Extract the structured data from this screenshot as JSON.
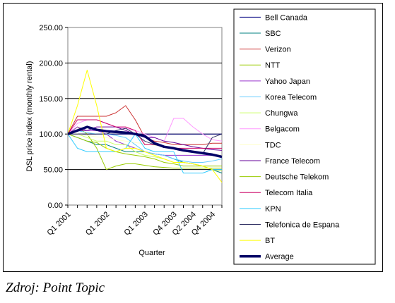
{
  "chart_data": {
    "type": "line",
    "xlabel": "Quarter",
    "ylabel": "DSL price index (monthly rental)",
    "ylim": [
      0,
      250
    ],
    "yticks": [
      "0.00",
      "50.00",
      "100.00",
      "150.00",
      "200.00",
      "250.00"
    ],
    "x": [
      "Q1 2001",
      "Q2 2001",
      "Q3 2001",
      "Q4 2001",
      "Q1 2002",
      "Q2 2002",
      "Q3 2002",
      "Q4 2002",
      "Q1 2003",
      "Q2 2003",
      "Q3 2003",
      "Q4 2003",
      "Q1 2004",
      "Q2 2004",
      "Q3 2004",
      "Q4 2004",
      "Q1 2005"
    ],
    "x_tick_labels": [
      "Q1 2001",
      "Q1 2002",
      "Q1 2003",
      "Q4 2003",
      "Q2 2004",
      "Q4 2004"
    ],
    "x_tick_index": [
      0,
      4,
      8,
      11,
      13,
      15
    ],
    "grid": "horizontal",
    "legend_position": "right",
    "series": [
      {
        "name": "Bell Canada",
        "color": "#000080",
        "width": 1,
        "values": [
          100,
          100,
          100,
          100,
          100,
          100,
          100,
          100,
          100,
          100,
          100,
          100,
          100,
          100,
          100,
          100,
          100
        ]
      },
      {
        "name": "SBC",
        "color": "#008080",
        "width": 1,
        "values": [
          100,
          95,
          90,
          85,
          85,
          80,
          75,
          75,
          75,
          72,
          70,
          65,
          60,
          58,
          55,
          50,
          45
        ]
      },
      {
        "name": "Verizon",
        "color": "#cc3333",
        "width": 1,
        "values": [
          100,
          125,
          125,
          125,
          125,
          130,
          140,
          120,
          95,
          90,
          88,
          85,
          85,
          85,
          85,
          87,
          87
        ]
      },
      {
        "name": "NTT",
        "color": "#99cc00",
        "width": 1,
        "values": [
          100,
          110,
          100,
          80,
          50,
          55,
          58,
          58,
          56,
          54,
          53,
          52,
          52,
          52,
          52,
          52,
          52
        ]
      },
      {
        "name": "Yahoo Japan",
        "color": "#9933cc",
        "width": 1,
        "values": [
          100,
          110,
          105,
          105,
          100,
          90,
          85,
          80,
          75,
          72,
          70,
          70,
          70,
          70,
          70,
          70,
          70
        ]
      },
      {
        "name": "Korea Telecom",
        "color": "#66ccff",
        "width": 1,
        "values": [
          100,
          105,
          102,
          100,
          100,
          98,
          95,
          85,
          75,
          72,
          70,
          65,
          62,
          60,
          60,
          62,
          65
        ]
      },
      {
        "name": "Chungwa",
        "color": "#ccff66",
        "width": 1,
        "values": [
          100,
          100,
          95,
          90,
          90,
          85,
          85,
          75,
          70,
          68,
          65,
          60,
          60,
          58,
          55,
          50,
          48
        ]
      },
      {
        "name": "Belgacom",
        "color": "#ff99ff",
        "width": 1,
        "values": [
          100,
          115,
          120,
          120,
          115,
          110,
          108,
          105,
          100,
          95,
          90,
          122,
          122,
          110,
          100,
          92,
          90
        ]
      },
      {
        "name": "TDC",
        "color": "#ffffcc",
        "width": 1,
        "values": [
          100,
          100,
          98,
          96,
          95,
          92,
          90,
          88,
          86,
          84,
          82,
          80,
          78,
          76,
          74,
          72,
          70
        ]
      },
      {
        "name": "France Telecom",
        "color": "#660099",
        "width": 1,
        "values": [
          100,
          105,
          105,
          110,
          110,
          110,
          105,
          100,
          95,
          95,
          90,
          88,
          85,
          82,
          80,
          78,
          77
        ]
      },
      {
        "name": "Deutsche Telekom",
        "color": "#99cc00",
        "width": 1,
        "values": [
          100,
          95,
          90,
          88,
          80,
          75,
          72,
          70,
          68,
          65,
          60,
          58,
          55,
          55,
          55,
          55,
          55
        ]
      },
      {
        "name": "Telecom Italia",
        "color": "#cc0066",
        "width": 1,
        "values": [
          100,
          120,
          120,
          120,
          115,
          110,
          110,
          105,
          85,
          85,
          82,
          80,
          80,
          80,
          80,
          80,
          80
        ]
      },
      {
        "name": "KPN",
        "color": "#33ccff",
        "width": 1,
        "values": [
          100,
          80,
          75,
          75,
          75,
          75,
          80,
          100,
          80,
          75,
          75,
          75,
          45,
          45,
          45,
          50,
          50
        ]
      },
      {
        "name": "Telefonica de Espana",
        "color": "#333366",
        "width": 1,
        "values": [
          100,
          100,
          100,
          100,
          100,
          105,
          108,
          100,
          90,
          85,
          82,
          80,
          78,
          75,
          72,
          95,
          100
        ]
      },
      {
        "name": "BT",
        "color": "#ffff00",
        "width": 1,
        "values": [
          100,
          140,
          190,
          140,
          80,
          75,
          80,
          80,
          75,
          70,
          65,
          60,
          60,
          58,
          55,
          50,
          32
        ]
      },
      {
        "name": "Average",
        "color": "#000066",
        "width": 3.5,
        "values": [
          100,
          105,
          110,
          106,
          104,
          103,
          102,
          100,
          97,
          87,
          82,
          80,
          77,
          75,
          73,
          71,
          68
        ]
      }
    ]
  },
  "source": "Zdroj: Point Topic"
}
